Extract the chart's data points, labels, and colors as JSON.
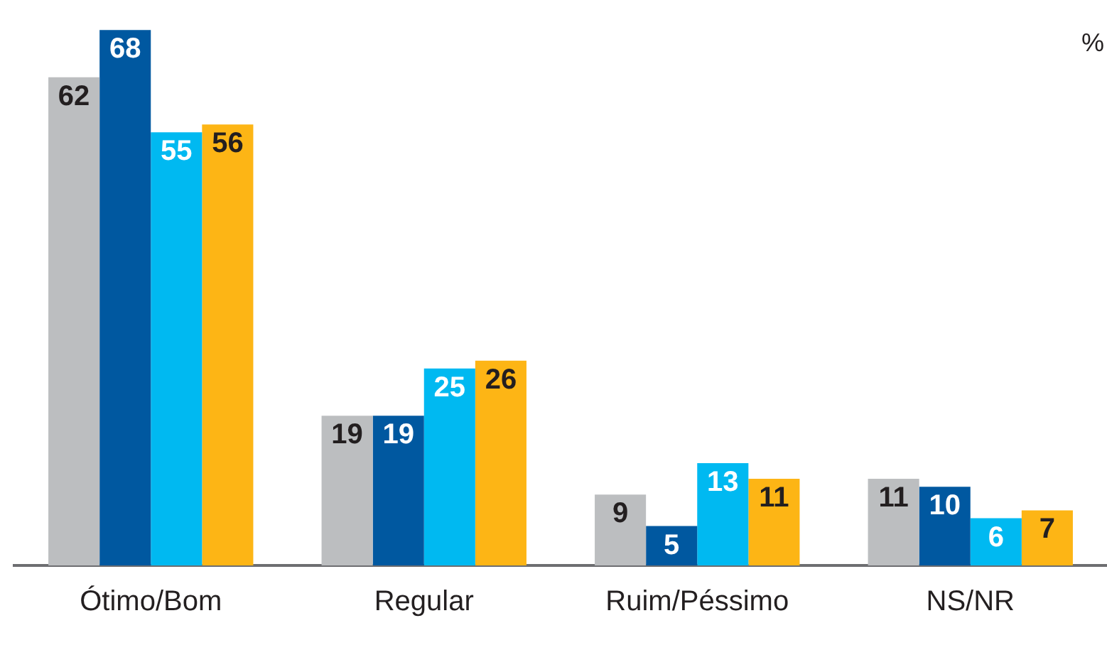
{
  "chart_data": {
    "type": "bar",
    "categories": [
      "Ótimo/Bom",
      "Regular",
      "Ruim/Péssimo",
      "NS/NR"
    ],
    "series": [
      {
        "color": "#bcbec0",
        "values": [
          62,
          19,
          9,
          11
        ]
      },
      {
        "color": "#0058a0",
        "values": [
          68,
          19,
          5,
          10
        ]
      },
      {
        "color": "#00b9f1",
        "values": [
          55,
          25,
          13,
          6
        ]
      },
      {
        "color": "#fdb515",
        "values": [
          56,
          26,
          11,
          7
        ]
      }
    ],
    "data_labels": true,
    "grid": false,
    "legend": false,
    "tick_labels": "x",
    "annotations": [
      "%"
    ]
  }
}
